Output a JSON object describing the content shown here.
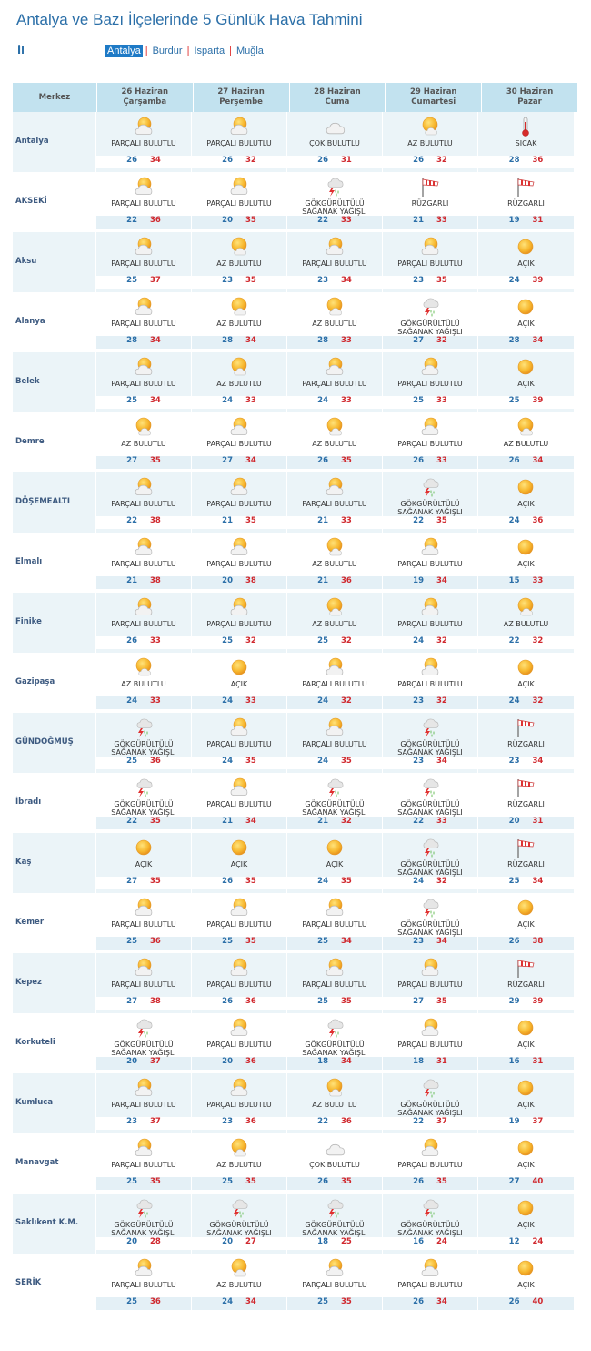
{
  "title": "Antalya ve Bazı İlçelerinde 5 Günlük Hava Tahmini",
  "il_label": "İl",
  "cities": [
    "Antalya",
    "Burdur",
    "Isparta",
    "Muğla"
  ],
  "selected_city": "Antalya",
  "header": {
    "first": "Merkez",
    "days": [
      {
        "date": "26 Haziran",
        "weekday": "Çarşamba"
      },
      {
        "date": "27 Haziran",
        "weekday": "Perşembe"
      },
      {
        "date": "28 Haziran",
        "weekday": "Cuma"
      },
      {
        "date": "29 Haziran",
        "weekday": "Cumartesi"
      },
      {
        "date": "30 Haziran",
        "weekday": "Pazar"
      }
    ]
  },
  "rows": [
    {
      "name": "Antalya",
      "days": [
        {
          "icon": "partly-cloudy-icon",
          "desc": "PARÇALI BULUTLU",
          "min": 26,
          "max": 34
        },
        {
          "icon": "partly-cloudy-icon",
          "desc": "PARÇALI BULUTLU",
          "min": 26,
          "max": 32
        },
        {
          "icon": "cloudy-icon",
          "desc": "ÇOK BULUTLU",
          "min": 26,
          "max": 31
        },
        {
          "icon": "few-clouds-icon",
          "desc": "AZ BULUTLU",
          "min": 26,
          "max": 32
        },
        {
          "icon": "thermometer-icon",
          "desc": "SICAK",
          "min": 28,
          "max": 36
        }
      ]
    },
    {
      "name": "AKSEKİ",
      "days": [
        {
          "icon": "partly-cloudy-icon",
          "desc": "PARÇALI BULUTLU",
          "min": 22,
          "max": 36
        },
        {
          "icon": "partly-cloudy-icon",
          "desc": "PARÇALI BULUTLU",
          "min": 20,
          "max": 35
        },
        {
          "icon": "thunderstorm-icon",
          "desc": "GÖKGÜRÜLTÜLÜ SAĞANAK YAĞIŞLI",
          "min": 22,
          "max": 33
        },
        {
          "icon": "windsock-icon",
          "desc": "RÜZGARLI",
          "min": 21,
          "max": 33
        },
        {
          "icon": "windsock-icon",
          "desc": "RÜZGARLI",
          "min": 19,
          "max": 31
        }
      ]
    },
    {
      "name": "Aksu",
      "days": [
        {
          "icon": "partly-cloudy-icon",
          "desc": "PARÇALI BULUTLU",
          "min": 25,
          "max": 37
        },
        {
          "icon": "few-clouds-icon",
          "desc": "AZ BULUTLU",
          "min": 23,
          "max": 35
        },
        {
          "icon": "partly-cloudy-icon",
          "desc": "PARÇALI BULUTLU",
          "min": 23,
          "max": 34
        },
        {
          "icon": "partly-cloudy-icon",
          "desc": "PARÇALI BULUTLU",
          "min": 23,
          "max": 35
        },
        {
          "icon": "sun-icon",
          "desc": "AÇIK",
          "min": 24,
          "max": 39
        }
      ]
    },
    {
      "name": "Alanya",
      "days": [
        {
          "icon": "partly-cloudy-icon",
          "desc": "PARÇALI BULUTLU",
          "min": 28,
          "max": 34
        },
        {
          "icon": "few-clouds-icon",
          "desc": "AZ BULUTLU",
          "min": 28,
          "max": 34
        },
        {
          "icon": "few-clouds-icon",
          "desc": "AZ BULUTLU",
          "min": 28,
          "max": 33
        },
        {
          "icon": "thunderstorm-icon",
          "desc": "GÖKGÜRÜLTÜLÜ SAĞANAK YAĞIŞLI",
          "min": 27,
          "max": 32
        },
        {
          "icon": "sun-icon",
          "desc": "AÇIK",
          "min": 28,
          "max": 34
        }
      ]
    },
    {
      "name": "Belek",
      "days": [
        {
          "icon": "partly-cloudy-icon",
          "desc": "PARÇALI BULUTLU",
          "min": 25,
          "max": 34
        },
        {
          "icon": "few-clouds-icon",
          "desc": "AZ BULUTLU",
          "min": 24,
          "max": 33
        },
        {
          "icon": "partly-cloudy-icon",
          "desc": "PARÇALI BULUTLU",
          "min": 24,
          "max": 33
        },
        {
          "icon": "partly-cloudy-icon",
          "desc": "PARÇALI BULUTLU",
          "min": 25,
          "max": 33
        },
        {
          "icon": "sun-icon",
          "desc": "AÇIK",
          "min": 25,
          "max": 39
        }
      ]
    },
    {
      "name": "Demre",
      "days": [
        {
          "icon": "few-clouds-icon",
          "desc": "AZ BULUTLU",
          "min": 27,
          "max": 35
        },
        {
          "icon": "partly-cloudy-icon",
          "desc": "PARÇALI BULUTLU",
          "min": 27,
          "max": 34
        },
        {
          "icon": "few-clouds-icon",
          "desc": "AZ BULUTLU",
          "min": 26,
          "max": 35
        },
        {
          "icon": "partly-cloudy-icon",
          "desc": "PARÇALI BULUTLU",
          "min": 26,
          "max": 33
        },
        {
          "icon": "few-clouds-icon",
          "desc": "AZ BULUTLU",
          "min": 26,
          "max": 34
        }
      ]
    },
    {
      "name": "DÖŞEMEALTI",
      "days": [
        {
          "icon": "partly-cloudy-icon",
          "desc": "PARÇALI BULUTLU",
          "min": 22,
          "max": 38
        },
        {
          "icon": "partly-cloudy-icon",
          "desc": "PARÇALI BULUTLU",
          "min": 21,
          "max": 35
        },
        {
          "icon": "partly-cloudy-icon",
          "desc": "PARÇALI BULUTLU",
          "min": 21,
          "max": 33
        },
        {
          "icon": "thunderstorm-icon",
          "desc": "GÖKGÜRÜLTÜLÜ SAĞANAK YAĞIŞLI",
          "min": 22,
          "max": 35
        },
        {
          "icon": "sun-icon",
          "desc": "AÇIK",
          "min": 24,
          "max": 36
        }
      ]
    },
    {
      "name": "Elmalı",
      "days": [
        {
          "icon": "partly-cloudy-icon",
          "desc": "PARÇALI BULUTLU",
          "min": 21,
          "max": 38
        },
        {
          "icon": "partly-cloudy-icon",
          "desc": "PARÇALI BULUTLU",
          "min": 20,
          "max": 38
        },
        {
          "icon": "few-clouds-icon",
          "desc": "AZ BULUTLU",
          "min": 21,
          "max": 36
        },
        {
          "icon": "partly-cloudy-icon",
          "desc": "PARÇALI BULUTLU",
          "min": 19,
          "max": 34
        },
        {
          "icon": "sun-icon",
          "desc": "AÇIK",
          "min": 15,
          "max": 33
        }
      ]
    },
    {
      "name": "Finike",
      "days": [
        {
          "icon": "partly-cloudy-icon",
          "desc": "PARÇALI BULUTLU",
          "min": 26,
          "max": 33
        },
        {
          "icon": "partly-cloudy-icon",
          "desc": "PARÇALI BULUTLU",
          "min": 25,
          "max": 32
        },
        {
          "icon": "few-clouds-icon",
          "desc": "AZ BULUTLU",
          "min": 25,
          "max": 32
        },
        {
          "icon": "partly-cloudy-icon",
          "desc": "PARÇALI BULUTLU",
          "min": 24,
          "max": 32
        },
        {
          "icon": "few-clouds-icon",
          "desc": "AZ BULUTLU",
          "min": 22,
          "max": 32
        }
      ]
    },
    {
      "name": "Gazipaşa",
      "days": [
        {
          "icon": "few-clouds-icon",
          "desc": "AZ BULUTLU",
          "min": 24,
          "max": 33
        },
        {
          "icon": "sun-icon",
          "desc": "AÇIK",
          "min": 24,
          "max": 33
        },
        {
          "icon": "partly-cloudy-icon",
          "desc": "PARÇALI BULUTLU",
          "min": 24,
          "max": 32
        },
        {
          "icon": "partly-cloudy-icon",
          "desc": "PARÇALI BULUTLU",
          "min": 23,
          "max": 32
        },
        {
          "icon": "sun-icon",
          "desc": "AÇIK",
          "min": 24,
          "max": 32
        }
      ]
    },
    {
      "name": "GÜNDOĞMUŞ",
      "days": [
        {
          "icon": "thunderstorm-icon",
          "desc": "GÖKGÜRÜLTÜLÜ SAĞANAK YAĞIŞLI",
          "min": 25,
          "max": 36
        },
        {
          "icon": "partly-cloudy-icon",
          "desc": "PARÇALI BULUTLU",
          "min": 24,
          "max": 35
        },
        {
          "icon": "partly-cloudy-icon",
          "desc": "PARÇALI BULUTLU",
          "min": 24,
          "max": 35
        },
        {
          "icon": "thunderstorm-icon",
          "desc": "GÖKGÜRÜLTÜLÜ SAĞANAK YAĞIŞLI",
          "min": 23,
          "max": 34
        },
        {
          "icon": "windsock-icon",
          "desc": "RÜZGARLI",
          "min": 23,
          "max": 34
        }
      ]
    },
    {
      "name": "İbradı",
      "days": [
        {
          "icon": "thunderstorm-icon",
          "desc": "GÖKGÜRÜLTÜLÜ SAĞANAK YAĞIŞLI",
          "min": 22,
          "max": 35
        },
        {
          "icon": "partly-cloudy-icon",
          "desc": "PARÇALI BULUTLU",
          "min": 21,
          "max": 34
        },
        {
          "icon": "thunderstorm-icon",
          "desc": "GÖKGÜRÜLTÜLÜ SAĞANAK YAĞIŞLI",
          "min": 21,
          "max": 32
        },
        {
          "icon": "thunderstorm-icon",
          "desc": "GÖKGÜRÜLTÜLÜ SAĞANAK YAĞIŞLI",
          "min": 22,
          "max": 33
        },
        {
          "icon": "windsock-icon",
          "desc": "RÜZGARLI",
          "min": 20,
          "max": 31
        }
      ]
    },
    {
      "name": "Kaş",
      "days": [
        {
          "icon": "sun-icon",
          "desc": "AÇIK",
          "min": 27,
          "max": 35
        },
        {
          "icon": "sun-icon",
          "desc": "AÇIK",
          "min": 26,
          "max": 35
        },
        {
          "icon": "sun-icon",
          "desc": "AÇIK",
          "min": 24,
          "max": 35
        },
        {
          "icon": "thunderstorm-icon",
          "desc": "GÖKGÜRÜLTÜLÜ SAĞANAK YAĞIŞLI",
          "min": 24,
          "max": 32
        },
        {
          "icon": "windsock-icon",
          "desc": "RÜZGARLI",
          "min": 25,
          "max": 34
        }
      ]
    },
    {
      "name": "Kemer",
      "days": [
        {
          "icon": "partly-cloudy-icon",
          "desc": "PARÇALI BULUTLU",
          "min": 25,
          "max": 36
        },
        {
          "icon": "partly-cloudy-icon",
          "desc": "PARÇALI BULUTLU",
          "min": 25,
          "max": 35
        },
        {
          "icon": "partly-cloudy-icon",
          "desc": "PARÇALI BULUTLU",
          "min": 25,
          "max": 34
        },
        {
          "icon": "thunderstorm-icon",
          "desc": "GÖKGÜRÜLTÜLÜ SAĞANAK YAĞIŞLI",
          "min": 23,
          "max": 34
        },
        {
          "icon": "sun-icon",
          "desc": "AÇIK",
          "min": 26,
          "max": 38
        }
      ]
    },
    {
      "name": "Kepez",
      "days": [
        {
          "icon": "partly-cloudy-icon",
          "desc": "PARÇALI BULUTLU",
          "min": 27,
          "max": 38
        },
        {
          "icon": "partly-cloudy-icon",
          "desc": "PARÇALI BULUTLU",
          "min": 26,
          "max": 36
        },
        {
          "icon": "partly-cloudy-icon",
          "desc": "PARÇALI BULUTLU",
          "min": 25,
          "max": 35
        },
        {
          "icon": "partly-cloudy-icon",
          "desc": "PARÇALI BULUTLU",
          "min": 27,
          "max": 35
        },
        {
          "icon": "windsock-icon",
          "desc": "RÜZGARLI",
          "min": 29,
          "max": 39
        }
      ]
    },
    {
      "name": "Korkuteli",
      "days": [
        {
          "icon": "thunderstorm-icon",
          "desc": "GÖKGÜRÜLTÜLÜ SAĞANAK YAĞIŞLI",
          "min": 20,
          "max": 37
        },
        {
          "icon": "partly-cloudy-icon",
          "desc": "PARÇALI BULUTLU",
          "min": 20,
          "max": 36
        },
        {
          "icon": "thunderstorm-icon",
          "desc": "GÖKGÜRÜLTÜLÜ SAĞANAK YAĞIŞLI",
          "min": 18,
          "max": 34
        },
        {
          "icon": "partly-cloudy-icon",
          "desc": "PARÇALI BULUTLU",
          "min": 18,
          "max": 31
        },
        {
          "icon": "sun-icon",
          "desc": "AÇIK",
          "min": 16,
          "max": 31
        }
      ]
    },
    {
      "name": "Kumluca",
      "days": [
        {
          "icon": "partly-cloudy-icon",
          "desc": "PARÇALI BULUTLU",
          "min": 23,
          "max": 37
        },
        {
          "icon": "partly-cloudy-icon",
          "desc": "PARÇALI BULUTLU",
          "min": 23,
          "max": 36
        },
        {
          "icon": "few-clouds-icon",
          "desc": "AZ BULUTLU",
          "min": 22,
          "max": 36
        },
        {
          "icon": "thunderstorm-icon",
          "desc": "GÖKGÜRÜLTÜLÜ SAĞANAK YAĞIŞLI",
          "min": 22,
          "max": 37
        },
        {
          "icon": "sun-icon",
          "desc": "AÇIK",
          "min": 19,
          "max": 37
        }
      ]
    },
    {
      "name": "Manavgat",
      "days": [
        {
          "icon": "partly-cloudy-icon",
          "desc": "PARÇALI BULUTLU",
          "min": 25,
          "max": 35
        },
        {
          "icon": "few-clouds-icon",
          "desc": "AZ BULUTLU",
          "min": 25,
          "max": 35
        },
        {
          "icon": "cloudy-icon",
          "desc": "ÇOK BULUTLU",
          "min": 26,
          "max": 35
        },
        {
          "icon": "partly-cloudy-icon",
          "desc": "PARÇALI BULUTLU",
          "min": 26,
          "max": 35
        },
        {
          "icon": "sun-icon",
          "desc": "AÇIK",
          "min": 27,
          "max": 40
        }
      ]
    },
    {
      "name": "Saklıkent K.M.",
      "days": [
        {
          "icon": "thunderstorm-icon",
          "desc": "GÖKGÜRÜLTÜLÜ SAĞANAK YAĞIŞLI",
          "min": 20,
          "max": 28
        },
        {
          "icon": "thunderstorm-icon",
          "desc": "GÖKGÜRÜLTÜLÜ SAĞANAK YAĞIŞLI",
          "min": 20,
          "max": 27
        },
        {
          "icon": "thunderstorm-icon",
          "desc": "GÖKGÜRÜLTÜLÜ SAĞANAK YAĞIŞLI",
          "min": 18,
          "max": 25
        },
        {
          "icon": "thunderstorm-icon",
          "desc": "GÖKGÜRÜLTÜLÜ SAĞANAK YAĞIŞLI",
          "min": 16,
          "max": 24
        },
        {
          "icon": "sun-icon",
          "desc": "AÇIK",
          "min": 12,
          "max": 24
        }
      ]
    },
    {
      "name": "SERİK",
      "days": [
        {
          "icon": "partly-cloudy-icon",
          "desc": "PARÇALI BULUTLU",
          "min": 25,
          "max": 36
        },
        {
          "icon": "few-clouds-icon",
          "desc": "AZ BULUTLU",
          "min": 24,
          "max": 34
        },
        {
          "icon": "partly-cloudy-icon",
          "desc": "PARÇALI BULUTLU",
          "min": 25,
          "max": 35
        },
        {
          "icon": "partly-cloudy-icon",
          "desc": "PARÇALI BULUTLU",
          "min": 26,
          "max": 34
        },
        {
          "icon": "sun-icon",
          "desc": "AÇIK",
          "min": 26,
          "max": 40
        }
      ]
    }
  ],
  "colors": {
    "title": "#2b6fa8",
    "header_bg": "#c2e2ef",
    "min_temp": "#2b6fa8",
    "max_temp": "#d0282e",
    "active_city_bg": "#1e7ac6",
    "separator": "#e0302f"
  }
}
